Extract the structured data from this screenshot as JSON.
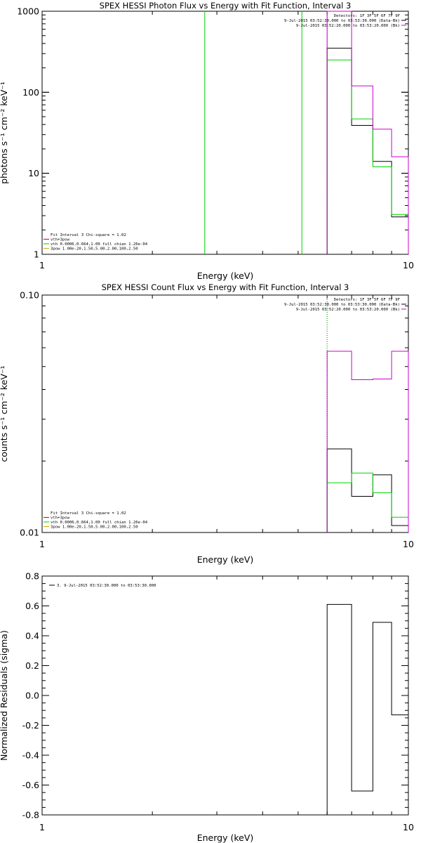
{
  "colors": {
    "black": "#000000",
    "green": "#00d200",
    "magenta": "#cc00cc",
    "red": "#e00000",
    "yellow": "#d4aa00"
  },
  "chart_data": [
    {
      "type": "line",
      "title": "SPEX HESSI Photon Flux vs Energy with Fit Function, Interval 3",
      "xlabel": "Energy (keV)",
      "ylabel": "photons s⁻¹ cm⁻² keV⁻¹",
      "xscale": "log",
      "yscale": "log",
      "xlim": [
        1,
        10
      ],
      "ylim": [
        1,
        1000
      ],
      "xticks": [
        {
          "v": 1,
          "label": "1"
        },
        {
          "v": 10,
          "label": "10"
        }
      ],
      "yticks": [
        {
          "v": 1,
          "label": "1"
        },
        {
          "v": 10,
          "label": "10"
        },
        {
          "v": 100,
          "label": "100"
        },
        {
          "v": 1000,
          "label": "1000"
        }
      ],
      "legend_top": [
        "Detectors: 1F 3F 5F 6F 7F 9F",
        "9-Jul-2015 03:52:30.000 to 03:53:30.000 (Data-Bk)",
        "9-Jul-2015 03:52:20.000 to 03:53:20.000 (Bk)"
      ],
      "legend_bottom": [
        "Fit Interval 3   Chi-square = 1.02",
        "vth+3pow",
        "vth 0.0006,0.664,1.00  full chian 1.26e-04",
        "3pow 1.00e-20,1.50,5.00,2.00,100,2.50"
      ],
      "vlines": [
        {
          "x": 2.78,
          "color": "green",
          "dotted": false
        },
        {
          "x": 5.12,
          "color": "green",
          "dotted": false
        },
        {
          "x": 6.0,
          "color": "magenta",
          "dotted": true
        }
      ],
      "series": [
        {
          "name": "Data-Bk",
          "color": "black",
          "edges": [
            6,
            7,
            8,
            9,
            10
          ],
          "values": [
            350,
            39,
            14,
            2.9
          ]
        },
        {
          "name": "vth+3pow",
          "color": "green",
          "edges": [
            6,
            7,
            8,
            9,
            10
          ],
          "values": [
            250,
            47,
            12,
            3.1
          ]
        },
        {
          "name": "Bk",
          "color": "magenta",
          "edges": [
            6,
            7,
            8,
            9,
            10
          ],
          "values": [
            1000,
            120,
            35,
            16
          ]
        }
      ]
    },
    {
      "type": "line",
      "title": "SPEX HESSI Count Flux vs Energy with Fit Function, Interval 3",
      "xlabel": "Energy (keV)",
      "ylabel": "counts s⁻¹ cm⁻² keV⁻¹",
      "xscale": "log",
      "yscale": "log",
      "xlim": [
        1,
        10
      ],
      "ylim": [
        0.01,
        0.1
      ],
      "xticks": [
        {
          "v": 1,
          "label": "1"
        },
        {
          "v": 10,
          "label": "10"
        }
      ],
      "yticks": [
        {
          "v": 0.01,
          "label": "0.01"
        },
        {
          "v": 0.1,
          "label": "0.10"
        }
      ],
      "legend_top": [
        "Detectors: 1F 3F 5F 6F 7F 9F",
        "9-Jul-2015 03:52:30.000 to 03:53:30.000 (Data-Bk)",
        "9-Jul-2015 03:52:20.000 to 03:53:20.000 (Bk)"
      ],
      "legend_bottom": [
        "Fit Interval 3   Chi-square = 1.02",
        "vth+3pow",
        "vth 0.0006,0.664,1.00  full chian 1.26e-04",
        "3pow 1.00e-20,1.50,5.00,2.00,100,2.50"
      ],
      "vlines": [
        {
          "x": 6.0,
          "color": "black",
          "dotted": true
        },
        {
          "x": 6.0,
          "color": "green",
          "dotted": true
        }
      ],
      "series": [
        {
          "name": "Data-Bk",
          "color": "black",
          "edges": [
            6,
            7,
            8,
            9,
            10
          ],
          "values": [
            0.0225,
            0.0142,
            0.0175,
            0.0107
          ]
        },
        {
          "name": "vth+3pow",
          "color": "green",
          "edges": [
            6,
            7,
            8,
            9,
            10
          ],
          "values": [
            0.0162,
            0.0178,
            0.0147,
            0.0116
          ]
        },
        {
          "name": "Bk",
          "color": "magenta",
          "edges": [
            6,
            7,
            8,
            9,
            10
          ],
          "values": [
            0.058,
            0.044,
            0.0443,
            0.058
          ]
        }
      ]
    },
    {
      "type": "line",
      "title": "",
      "xlabel": "Energy (keV)",
      "ylabel": "Normalized Residuals (sigma)",
      "xscale": "log",
      "yscale": "linear",
      "xlim": [
        1,
        10
      ],
      "ylim": [
        -0.8,
        0.8
      ],
      "xticks": [
        {
          "v": 1,
          "label": "1"
        },
        {
          "v": 10,
          "label": "10"
        }
      ],
      "yticks": [
        {
          "v": 0.8,
          "label": "0.8"
        },
        {
          "v": 0.6,
          "label": "0.6"
        },
        {
          "v": 0.4,
          "label": "0.4"
        },
        {
          "v": 0.2,
          "label": "0.2"
        },
        {
          "v": 0.0,
          "label": "0.0"
        },
        {
          "v": -0.2,
          "label": "-0.2"
        },
        {
          "v": -0.4,
          "label": "-0.4"
        },
        {
          "v": -0.6,
          "label": "-0.6"
        },
        {
          "v": -0.8,
          "label": "-0.8"
        }
      ],
      "legend_top": [
        "3.  9-Jul-2015 03:52:30.000 to 03:53:30.000"
      ],
      "legend_bottom": [],
      "vlines": [],
      "series": [
        {
          "name": "3.  9-Jul-2015 03:52:30.000 to 03:53:30.000",
          "color": "black",
          "edges": [
            6,
            7,
            8,
            9,
            10
          ],
          "values": [
            0.61,
            -0.64,
            0.49,
            -0.13
          ]
        }
      ]
    }
  ]
}
